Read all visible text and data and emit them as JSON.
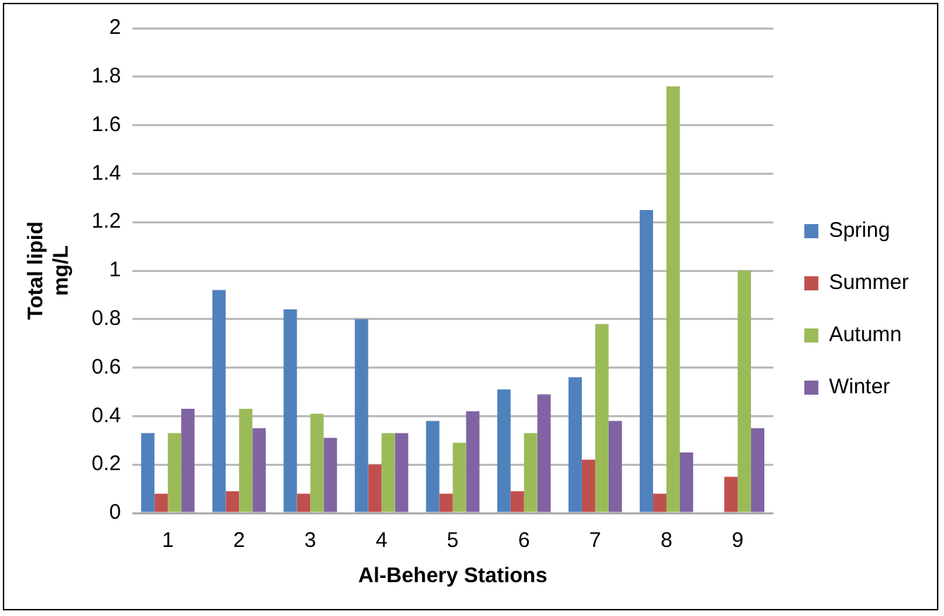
{
  "chart_data": {
    "type": "bar",
    "xlabel": "Al-Behery Stations",
    "ylabel": "Total lipid mg/L",
    "categories": [
      "1",
      "2",
      "3",
      "4",
      "5",
      "6",
      "7",
      "8",
      "9"
    ],
    "series": [
      {
        "name": "Spring",
        "color": "#4f81bd",
        "values": [
          0.33,
          0.92,
          0.84,
          0.8,
          0.38,
          0.51,
          0.56,
          1.25,
          null
        ]
      },
      {
        "name": "Summer",
        "color": "#c0504d",
        "values": [
          0.08,
          0.09,
          0.08,
          0.2,
          0.08,
          0.09,
          0.22,
          0.08,
          0.15
        ]
      },
      {
        "name": "Autumn",
        "color": "#9bbb59",
        "values": [
          0.33,
          0.43,
          0.41,
          0.33,
          0.29,
          0.33,
          0.78,
          1.76,
          1.0
        ]
      },
      {
        "name": "Winter",
        "color": "#8064a2",
        "values": [
          0.43,
          0.35,
          0.31,
          0.33,
          0.42,
          0.49,
          0.38,
          0.25,
          0.35
        ]
      }
    ],
    "ylim": [
      0,
      2
    ],
    "yticks": [
      0,
      0.2,
      0.4,
      0.6,
      0.8,
      1,
      1.2,
      1.4,
      1.6,
      1.8,
      2
    ],
    "grid": "y",
    "legend": "right"
  }
}
